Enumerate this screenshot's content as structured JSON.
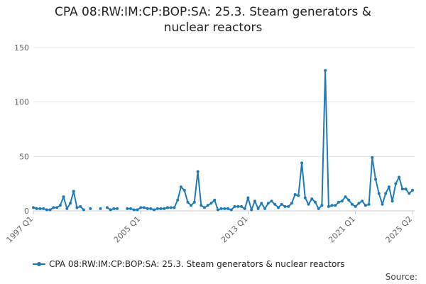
{
  "chart_data": {
    "type": "line",
    "title": [
      "CPA 08:RW:IM:CP:BOP:SA: 25.3. Steam generators &",
      "nuclear reactors"
    ],
    "xlabel": "",
    "ylabel": "",
    "ylim": [
      0,
      150
    ],
    "yticks": [
      0,
      50,
      100,
      150
    ],
    "xticks": [
      "1997 Q1",
      "2005 Q1",
      "2013 Q1",
      "2021 Q1",
      "2025 Q2"
    ],
    "xrange": [
      "1997 Q1",
      "2025 Q2"
    ],
    "grid": "horizontal",
    "legend_position": "bottom",
    "series": [
      {
        "name": "CPA 08:RW:IM:CP:BOP:SA: 25.3. Steam generators & nuclear reactors",
        "color": "#1f7bb6",
        "x": [
          "1997 Q1",
          "1997 Q2",
          "1997 Q3",
          "1997 Q4",
          "1998 Q1",
          "1998 Q2",
          "1998 Q3",
          "1998 Q4",
          "1999 Q1",
          "1999 Q2",
          "1999 Q3",
          "1999 Q4",
          "2000 Q1",
          "2000 Q2",
          "2000 Q3",
          "2000 Q4",
          "2001 Q1",
          "2001 Q2",
          "2001 Q3",
          "2001 Q4",
          "2002 Q1",
          "2002 Q2",
          "2002 Q3",
          "2002 Q4",
          "2003 Q1",
          "2003 Q2",
          "2003 Q3",
          "2003 Q4",
          "2004 Q1",
          "2004 Q2",
          "2004 Q3",
          "2004 Q4",
          "2005 Q1",
          "2005 Q2",
          "2005 Q3",
          "2005 Q4",
          "2006 Q1",
          "2006 Q2",
          "2006 Q3",
          "2006 Q4",
          "2007 Q1",
          "2007 Q2",
          "2007 Q3",
          "2007 Q4",
          "2008 Q1",
          "2008 Q2",
          "2008 Q3",
          "2008 Q4",
          "2009 Q1",
          "2009 Q2",
          "2009 Q3",
          "2009 Q4",
          "2010 Q1",
          "2010 Q2",
          "2010 Q3",
          "2010 Q4",
          "2011 Q1",
          "2011 Q2",
          "2011 Q3",
          "2011 Q4",
          "2012 Q1",
          "2012 Q2",
          "2012 Q3",
          "2012 Q4",
          "2013 Q1",
          "2013 Q2",
          "2013 Q3",
          "2013 Q4",
          "2014 Q1",
          "2014 Q2",
          "2014 Q3",
          "2014 Q4",
          "2015 Q1",
          "2015 Q2",
          "2015 Q3",
          "2015 Q4",
          "2016 Q1",
          "2016 Q2",
          "2016 Q3",
          "2016 Q4",
          "2017 Q1",
          "2017 Q2",
          "2017 Q3",
          "2017 Q4",
          "2018 Q1",
          "2018 Q2",
          "2018 Q3",
          "2018 Q4",
          "2019 Q1",
          "2019 Q2",
          "2019 Q3",
          "2019 Q4",
          "2020 Q1",
          "2020 Q2",
          "2020 Q3",
          "2020 Q4",
          "2021 Q1",
          "2021 Q2",
          "2021 Q3",
          "2021 Q4",
          "2022 Q1",
          "2022 Q2",
          "2022 Q3",
          "2022 Q4",
          "2023 Q1",
          "2023 Q2",
          "2023 Q3",
          "2023 Q4",
          "2024 Q1",
          "2024 Q2",
          "2024 Q3",
          "2024 Q4",
          "2025 Q1",
          "2025 Q2"
        ],
        "values": [
          3,
          2,
          2,
          2,
          1,
          1,
          3,
          3,
          5,
          13,
          2,
          7,
          18,
          3,
          4,
          1,
          null,
          2,
          null,
          null,
          2,
          null,
          3,
          1,
          2,
          2,
          null,
          null,
          2,
          2,
          1,
          1,
          3,
          3,
          2,
          2,
          1,
          2,
          2,
          2,
          3,
          3,
          3,
          10,
          22,
          19,
          8,
          5,
          8,
          36,
          5,
          3,
          5,
          7,
          10,
          1,
          2,
          2,
          2,
          1,
          4,
          4,
          4,
          2,
          12,
          1,
          9,
          2,
          7,
          2,
          7,
          9,
          6,
          3,
          6,
          4,
          4,
          7,
          15,
          14,
          44,
          12,
          6,
          11,
          8,
          2,
          5,
          129,
          4,
          5,
          5,
          8,
          9,
          13,
          10,
          6,
          4,
          7,
          9,
          5,
          6,
          49,
          29,
          16,
          6,
          16,
          22,
          9,
          25,
          31,
          20,
          20,
          16,
          19
        ]
      }
    ]
  },
  "legend": {
    "label": "CPA 08:RW:IM:CP:BOP:SA: 25.3. Steam generators & nuclear reactors"
  },
  "source": {
    "label": "Source:"
  }
}
